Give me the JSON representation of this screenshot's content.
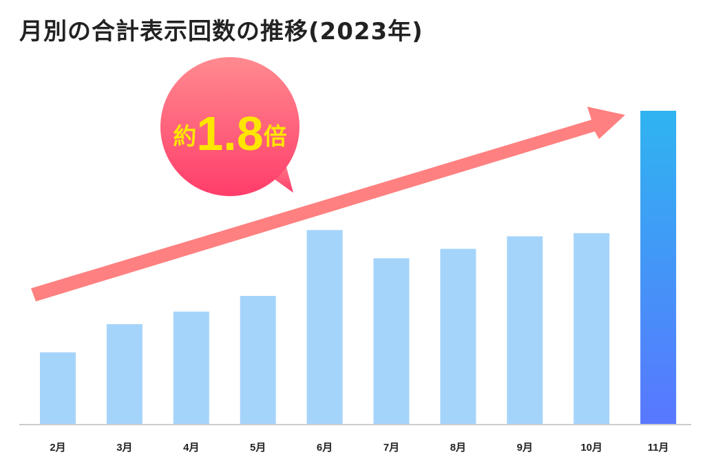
{
  "page": {
    "title": "月別の合計表示回数の推移(2023年)"
  },
  "badge": {
    "prefix": "約",
    "value": "1.8",
    "suffix": "倍",
    "color_top": "#ff8a8f",
    "color_bottom": "#ff3d6a",
    "text_color": "#ffe600"
  },
  "arrow": {
    "color": "#ff8080"
  },
  "colors": {
    "bar": "#a5d4fb",
    "highlight_top": "#2fb4f0",
    "highlight_bottom": "#5877ff",
    "axis": "#cccccc",
    "label": "#222222"
  },
  "chart_data": {
    "type": "bar",
    "title": "月別の合計表示回数の推移(2023年)",
    "categories": [
      "2月",
      "3月",
      "4月",
      "5月",
      "6月",
      "7月",
      "8月",
      "9月",
      "10月",
      "11月"
    ],
    "values": [
      23,
      32,
      36,
      41,
      62,
      53,
      56,
      60,
      61,
      100
    ],
    "highlight_index": 9,
    "ylim": [
      0,
      100
    ],
    "grid": false,
    "annotation": "約1.8倍"
  }
}
